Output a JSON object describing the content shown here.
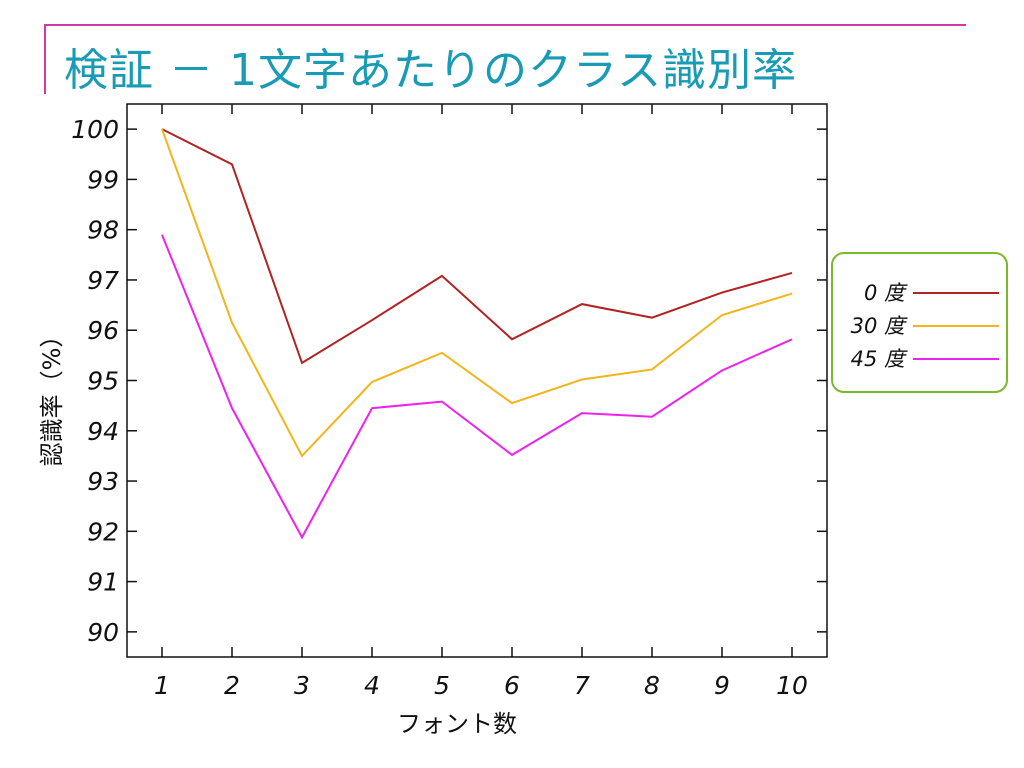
{
  "slide": {
    "title": "検証 － 1文字あたりのクラス識別率",
    "accent_color": "#cc3ba6",
    "title_color": "#1a9bb5"
  },
  "chart_data": {
    "type": "line",
    "x": [
      1,
      2,
      3,
      4,
      5,
      6,
      7,
      8,
      9,
      10
    ],
    "xlabel": "フォント数",
    "ylabel": "認識率（%）",
    "ylim": [
      89.5,
      100.5
    ],
    "yticks": [
      90,
      91,
      92,
      93,
      94,
      95,
      96,
      97,
      98,
      99,
      100
    ],
    "grid": false,
    "legend_position": "right",
    "legend_border_color": "#7ab82e",
    "series": [
      {
        "name": "0 度",
        "color": "#b22222",
        "values": [
          100.0,
          99.3,
          95.35,
          96.2,
          97.08,
          95.82,
          96.52,
          96.25,
          96.75,
          97.14
        ]
      },
      {
        "name": "30 度",
        "color": "#f2b61c",
        "values": [
          100.0,
          96.15,
          93.5,
          94.97,
          95.55,
          94.55,
          95.02,
          95.22,
          96.3,
          96.73
        ]
      },
      {
        "name": "45 度",
        "color": "#ee22ee",
        "values": [
          97.9,
          94.45,
          91.88,
          94.45,
          94.58,
          93.52,
          94.35,
          94.28,
          95.2,
          95.82
        ]
      }
    ]
  }
}
